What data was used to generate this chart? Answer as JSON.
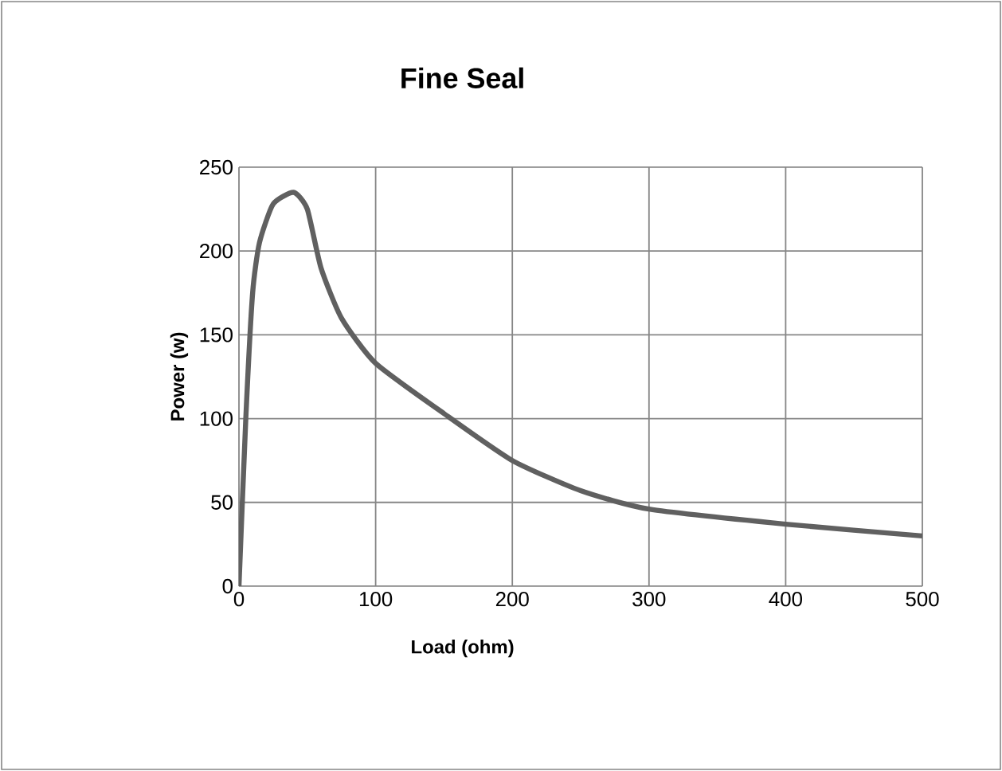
{
  "chart_data": {
    "type": "line",
    "title": "Fine Seal",
    "xlabel": "Load (ohm)",
    "ylabel": "Power (w)",
    "series": [
      {
        "color": "#606060",
        "x": [
          0,
          5,
          10,
          15,
          25,
          40,
          50,
          60,
          75,
          100,
          150,
          200,
          250,
          300,
          400,
          500
        ],
        "values": [
          0,
          100,
          175,
          205,
          228,
          235,
          225,
          190,
          160,
          133,
          103,
          75,
          57,
          46,
          37,
          30
        ]
      }
    ],
    "xlim": [
      0,
      500
    ],
    "xticks": [
      0,
      100,
      200,
      300,
      400,
      500
    ],
    "ylim": [
      0,
      250
    ],
    "yticks": [
      0,
      50,
      100,
      150,
      200,
      250
    ],
    "grid": true,
    "line_style": "solid",
    "marker": "none"
  }
}
